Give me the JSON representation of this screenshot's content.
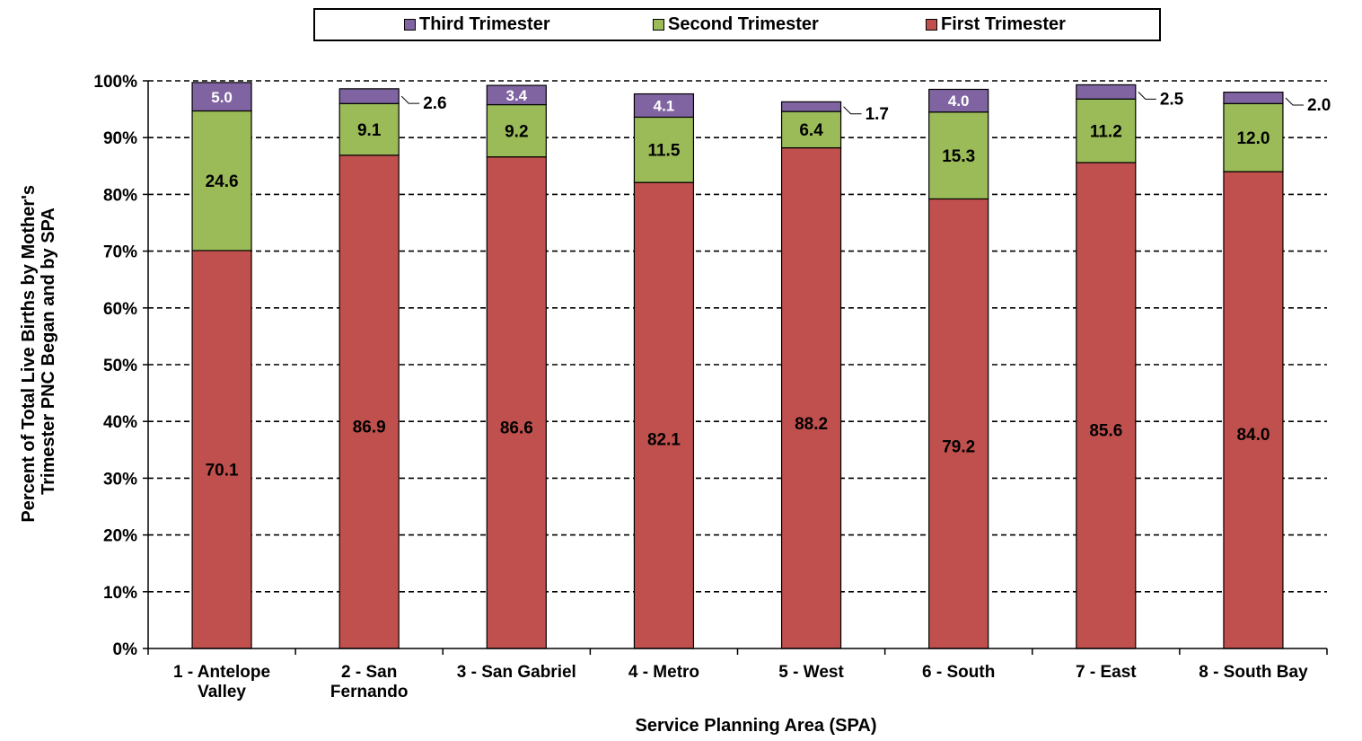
{
  "chart_data": {
    "type": "bar",
    "stacked": true,
    "title": "",
    "xlabel": "Service Planning Area (SPA)",
    "ylabel": "Percent of Total Live Births by Mother's Trimester PNC Began and by SPA",
    "ylim": [
      0,
      100
    ],
    "yticks": [
      "0%",
      "10%",
      "20%",
      "30%",
      "40%",
      "50%",
      "60%",
      "70%",
      "80%",
      "90%",
      "100%"
    ],
    "grid": "dashed horizontal",
    "legend_position": "top",
    "categories": [
      [
        "1 - Antelope",
        "Valley"
      ],
      [
        "2 - San",
        "Fernando"
      ],
      [
        "3 - San Gabriel"
      ],
      [
        "4 - Metro"
      ],
      [
        "5 - West"
      ],
      [
        "6 - South"
      ],
      [
        "7 - East"
      ],
      [
        "8 - South Bay"
      ]
    ],
    "series": [
      {
        "name": "First Trimester",
        "color": "#c0504d",
        "label_color": "#000000",
        "values": [
          70.1,
          86.9,
          86.6,
          82.1,
          88.2,
          79.2,
          85.6,
          84.0
        ],
        "labels": [
          "70.1",
          "86.9",
          "86.6",
          "82.1",
          "88.2",
          "79.2",
          "85.6",
          "84.0"
        ]
      },
      {
        "name": "Second Trimester",
        "color": "#9bbb59",
        "label_color": "#000000",
        "values": [
          24.6,
          9.1,
          9.2,
          11.5,
          6.4,
          15.3,
          11.2,
          12.0
        ],
        "labels": [
          "24.6",
          "9.1",
          "9.2",
          "11.5",
          "6.4",
          "15.3",
          "11.2",
          "12.0"
        ]
      },
      {
        "name": "Third Trimester",
        "color": "#8064a2",
        "label_color": "#ffffff",
        "values": [
          5.0,
          2.6,
          3.4,
          4.1,
          1.7,
          4.0,
          2.5,
          2.0
        ],
        "labels": [
          "5.0",
          "2.6",
          "3.4",
          "4.1",
          "1.7",
          "4.0",
          "2.5",
          "2.0"
        ],
        "outside_label": [
          false,
          true,
          false,
          false,
          true,
          false,
          true,
          true
        ]
      }
    ],
    "legend_order": [
      "Third Trimester",
      "Second Trimester",
      "First Trimester"
    ]
  }
}
